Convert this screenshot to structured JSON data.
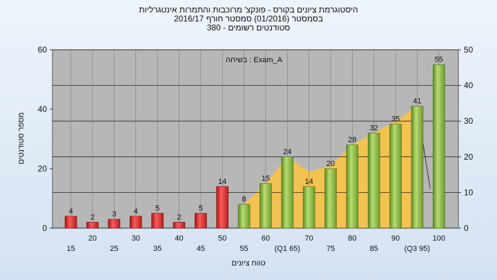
{
  "header": {
    "title_line1": "היסטוגרמת ציונים בקורס - פונקצ' מרוכבות והתמרות אינטגרליות",
    "title_line2": "בסמסטר  (01/2016)  סמסטר חורף 2016/17",
    "title_line3": "סטודנטים רשומים - 380"
  },
  "colors": {
    "fail_bar": "#e03030",
    "pass_bar": "#8fbe45",
    "area": "#f7c24a",
    "plot_bg": "#b7b7b7",
    "page_bg": "#dde8f4"
  },
  "chart_data": {
    "type": "bar",
    "annotation": "בשיחה : Exam_A",
    "xlabel": "טווח ציונים",
    "ylabel": "מספר סטודנטים",
    "ylim_left": [
      0,
      60
    ],
    "yticks_left": [
      0,
      20,
      40,
      60
    ],
    "ylim_right": [
      0,
      50
    ],
    "yticks_right": [
      0,
      10,
      20,
      30,
      40,
      50
    ],
    "grid": true,
    "categories": [
      "15",
      "20",
      "25",
      "30",
      "35",
      "40",
      "45",
      "50",
      "55",
      "60",
      "(Q1 65)",
      "70",
      "75",
      "80",
      "85",
      "90",
      "(Q3 95)",
      "100"
    ],
    "values": [
      4,
      2,
      3,
      4,
      5,
      2,
      5,
      14,
      8,
      15,
      24,
      14,
      20,
      28,
      32,
      35,
      41,
      55
    ],
    "bar_colors": [
      "fail",
      "fail",
      "fail",
      "fail",
      "fail",
      "fail",
      "fail",
      "fail",
      "pass",
      "pass",
      "pass",
      "pass",
      "pass",
      "pass",
      "pass",
      "pass",
      "pass",
      "pass"
    ],
    "area_series": {
      "x": [
        "55",
        "60",
        "(Q1 65)",
        "70",
        "75",
        "80",
        "85",
        "90",
        "(Q3 95)"
      ],
      "values": [
        8,
        15,
        24,
        19,
        21,
        28,
        32,
        36,
        41
      ]
    }
  }
}
